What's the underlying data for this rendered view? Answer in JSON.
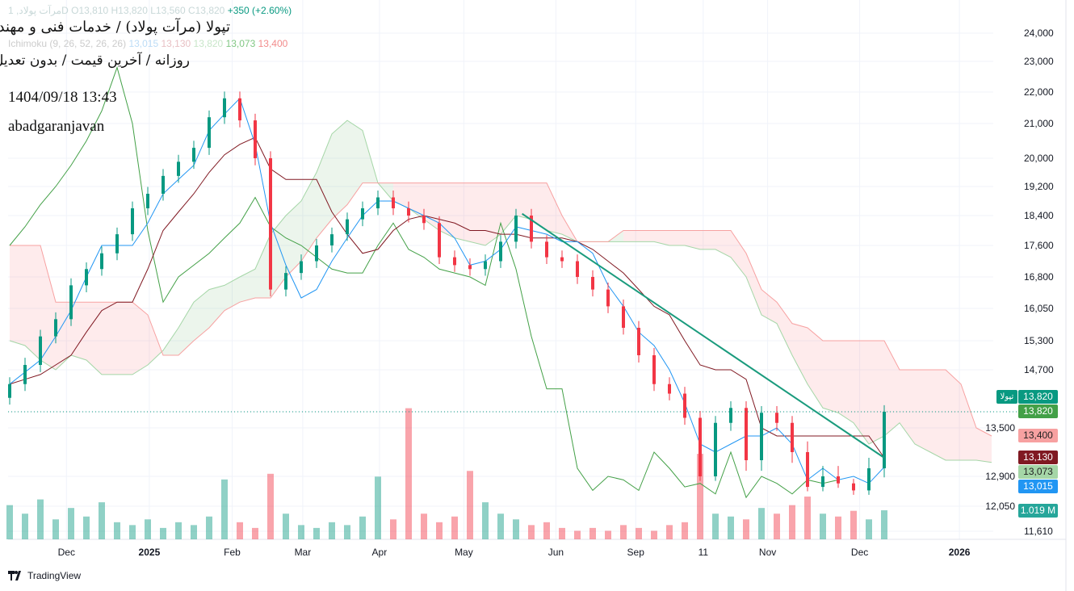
{
  "header": {
    "symbol_line": "مرآت پولاد, 1D",
    "open": "O13,810",
    "high": "H13,820",
    "low": "L13,560",
    "close": "C13,820",
    "change": "+350 (+2.60%)",
    "ichimoku_label": "Ichimoku (9, 26, 52, 26, 26)",
    "ichimoku_values": [
      "13,015",
      "13,130",
      "13,820",
      "13,073",
      "13,400"
    ]
  },
  "overlay": {
    "title": "تپولا (مرآت پولاد) / خدمات فنی و مهندسی",
    "subtitle": "روزانه / آخرین قیمت / بدون تعدیل",
    "datetime": "1404/09/18 13:43",
    "author": "abadgaranjavan"
  },
  "footer": {
    "brand": "TradingView"
  },
  "colors": {
    "up": "#089981",
    "down": "#f23645",
    "tenkan": "#2196f3",
    "kijun": "#801922",
    "chikou": "#43a047",
    "spanA": "#a5d6a7",
    "spanB": "#f7a1a1",
    "trend": "#1a9b7d"
  },
  "tags": [
    {
      "ticker": "تپولا",
      "value": "13,820",
      "color": "#089981",
      "text": "#fff",
      "price": 13820,
      "dy": -18
    },
    {
      "value": "13,820",
      "color": "#43a047",
      "text": "#fff",
      "price": 13820,
      "dy": 0
    },
    {
      "value": "13,400",
      "color": "#f7a1a1",
      "text": "#222",
      "price": 13400,
      "dy": 0
    },
    {
      "value": "13,130",
      "color": "#801922",
      "text": "#fff",
      "price": 13130,
      "dy": 0
    },
    {
      "value": "13,073",
      "color": "#a5d6a7",
      "text": "#222",
      "price": 13073,
      "dy": 0
    },
    {
      "value": "13,015",
      "color": "#2196f3",
      "text": "#fff",
      "price": 13015,
      "dy": 0
    },
    {
      "value": "1.019 M",
      "color": "#26a69a",
      "text": "#fff",
      "price": 12050,
      "dy": 6
    }
  ],
  "chart_data": {
    "type": "candlestick",
    "yticks": [
      24000,
      23000,
      22000,
      21000,
      20000,
      19200,
      18400,
      17600,
      16800,
      16050,
      15300,
      14700,
      13500,
      12900,
      12050,
      11610
    ],
    "ytick_labels": [
      "24,000",
      "23,000",
      "22,000",
      "21,000",
      "20,000",
      "19,200",
      "18,400",
      "17,600",
      "16,800",
      "16,050",
      "15,300",
      "14,700",
      "13,500",
      "12,900",
      "12,050",
      "11,610"
    ],
    "xlabels": [
      {
        "label": "Dec",
        "i": 3.7
      },
      {
        "label": "2025",
        "i": 9.1
      },
      {
        "label": "Feb",
        "i": 14.5
      },
      {
        "label": "Mar",
        "i": 19.1
      },
      {
        "label": "Apr",
        "i": 24.1
      },
      {
        "label": "May",
        "i": 29.6
      },
      {
        "label": "Jun",
        "i": 35.6
      },
      {
        "label": "Sep",
        "i": 40.8
      },
      {
        "label": "11",
        "i": 45.2
      },
      {
        "label": "Nov",
        "i": 49.4
      },
      {
        "label": "Dec",
        "i": 55.4
      },
      {
        "label": "2026",
        "i": 61.9
      }
    ],
    "close": [
      14400,
      14800,
      15400,
      15800,
      16600,
      17000,
      17400,
      17900,
      18600,
      19000,
      19500,
      19900,
      20300,
      21200,
      21800,
      21100,
      20000,
      16500,
      16900,
      17200,
      17600,
      17900,
      18300,
      18600,
      18900,
      18600,
      18400,
      18200,
      17300,
      17100,
      17000,
      17200,
      17700,
      18400,
      17700,
      17300,
      17200,
      16800,
      16500,
      16100,
      15600,
      15000,
      14400,
      14200,
      13700,
      12900,
      13600,
      13900,
      13100,
      13800,
      13600,
      13200,
      12600,
      12900,
      12700,
      12500,
      13000,
      13820
    ],
    "volume_m": [
      1.2,
      0.9,
      1.4,
      0.7,
      1.1,
      0.8,
      1.3,
      0.6,
      0.5,
      0.7,
      0.4,
      0.6,
      0.5,
      0.8,
      2.1,
      0.6,
      0.4,
      2.3,
      0.9,
      0.5,
      0.4,
      0.6,
      0.5,
      0.8,
      2.2,
      0.7,
      4.6,
      0.9,
      0.6,
      0.8,
      2.4,
      1.3,
      0.9,
      0.7,
      0.5,
      0.6,
      0.4,
      0.3,
      0.4,
      0.3,
      0.5,
      0.4,
      0.3,
      0.5,
      0.6,
      3.0,
      0.9,
      0.8,
      0.7,
      1.1,
      0.9,
      1.2,
      1.5,
      0.9,
      0.8,
      1.0,
      0.7,
      1.019
    ],
    "tenkan": [
      14400,
      14650,
      14900,
      15400,
      16000,
      16800,
      17600,
      17600,
      17600,
      18200,
      19000,
      19400,
      19800,
      20800,
      21300,
      21800,
      20400,
      18200,
      17100,
      16300,
      16500,
      17200,
      17800,
      18400,
      18800,
      18800,
      18600,
      18400,
      18200,
      17800,
      17100,
      17200,
      17500,
      18100,
      18000,
      17900,
      17700,
      17700,
      17400,
      16600,
      16100,
      15500,
      15200,
      14700,
      14000,
      13300,
      13200,
      13300,
      13400,
      13400,
      13500,
      13300,
      12800,
      13000,
      12800,
      12900,
      12700,
      13015
    ],
    "kijun": [
      14400,
      14500,
      14600,
      14800,
      15000,
      15500,
      16000,
      16200,
      16200,
      17000,
      18000,
      18500,
      19000,
      19600,
      20100,
      20400,
      20600,
      19700,
      19400,
      19400,
      19400,
      18500,
      17900,
      17400,
      17500,
      18000,
      18300,
      18400,
      18300,
      18200,
      18000,
      18000,
      17900,
      17900,
      17800,
      17800,
      17800,
      17700,
      17500,
      17200,
      16900,
      16500,
      16100,
      15900,
      15300,
      14800,
      14700,
      14700,
      14500,
      13500,
      13400,
      13400,
      13400,
      13400,
      13400,
      13400,
      13400,
      13130
    ],
    "chikou": [
      17600,
      18100,
      18700,
      19200,
      19800,
      20500,
      21400,
      22800,
      21000,
      18000,
      16200,
      16800,
      17100,
      17400,
      17800,
      18200,
      18900,
      18100,
      17800,
      17600,
      17300,
      17000,
      16900,
      16900,
      17600,
      18200,
      17500,
      17300,
      17000,
      16900,
      16800,
      16600,
      18200,
      17000,
      15400,
      14300,
      14300,
      13000,
      12500,
      12900,
      12800,
      12500,
      13200,
      13000,
      12600,
      12700,
      12400,
      13200,
      12300,
      12900,
      12700,
      12400,
      12800,
      12700,
      12800
    ],
    "spanA": [
      15300,
      15200,
      14900,
      14700,
      15000,
      14900,
      14600,
      14600,
      14600,
      14800,
      15100,
      15600,
      16200,
      16500,
      16600,
      16800,
      17000,
      17900,
      18400,
      18800,
      19600,
      20700,
      21100,
      20800,
      19300,
      18800,
      18600,
      18300,
      18000,
      17800,
      17700,
      17600,
      17900,
      18400,
      18300,
      18000,
      17900,
      17700,
      17700,
      17700,
      17700,
      17700,
      17700,
      17600,
      17600,
      17500,
      17500,
      17300,
      16800,
      15900,
      15700,
      15000,
      14400,
      13900,
      13800,
      13600,
      13300,
      13400,
      13600,
      13300,
      13200,
      13100,
      13100,
      13100,
      13073
    ],
    "spanB": [
      17600,
      17600,
      17600,
      16200,
      16200,
      16200,
      16200,
      16200,
      16200,
      15900,
      15000,
      15000,
      15300,
      15600,
      16000,
      16200,
      16300,
      16300,
      16800,
      17200,
      17800,
      18300,
      18700,
      19300,
      19300,
      19300,
      19300,
      19300,
      19300,
      19300,
      19300,
      19300,
      19300,
      19300,
      19300,
      19300,
      18400,
      17700,
      17700,
      17700,
      18000,
      18000,
      18000,
      18000,
      18000,
      18000,
      18000,
      18000,
      17400,
      16500,
      16200,
      15700,
      15600,
      15300,
      15300,
      15300,
      15300,
      15300,
      14700,
      14700,
      14700,
      14700,
      14400,
      13500,
      13400
    ],
    "trendline": [
      {
        "i": 33.4,
        "price": 18450
      },
      {
        "i": 57,
        "price": 13130
      }
    ],
    "last_price": 13820
  }
}
